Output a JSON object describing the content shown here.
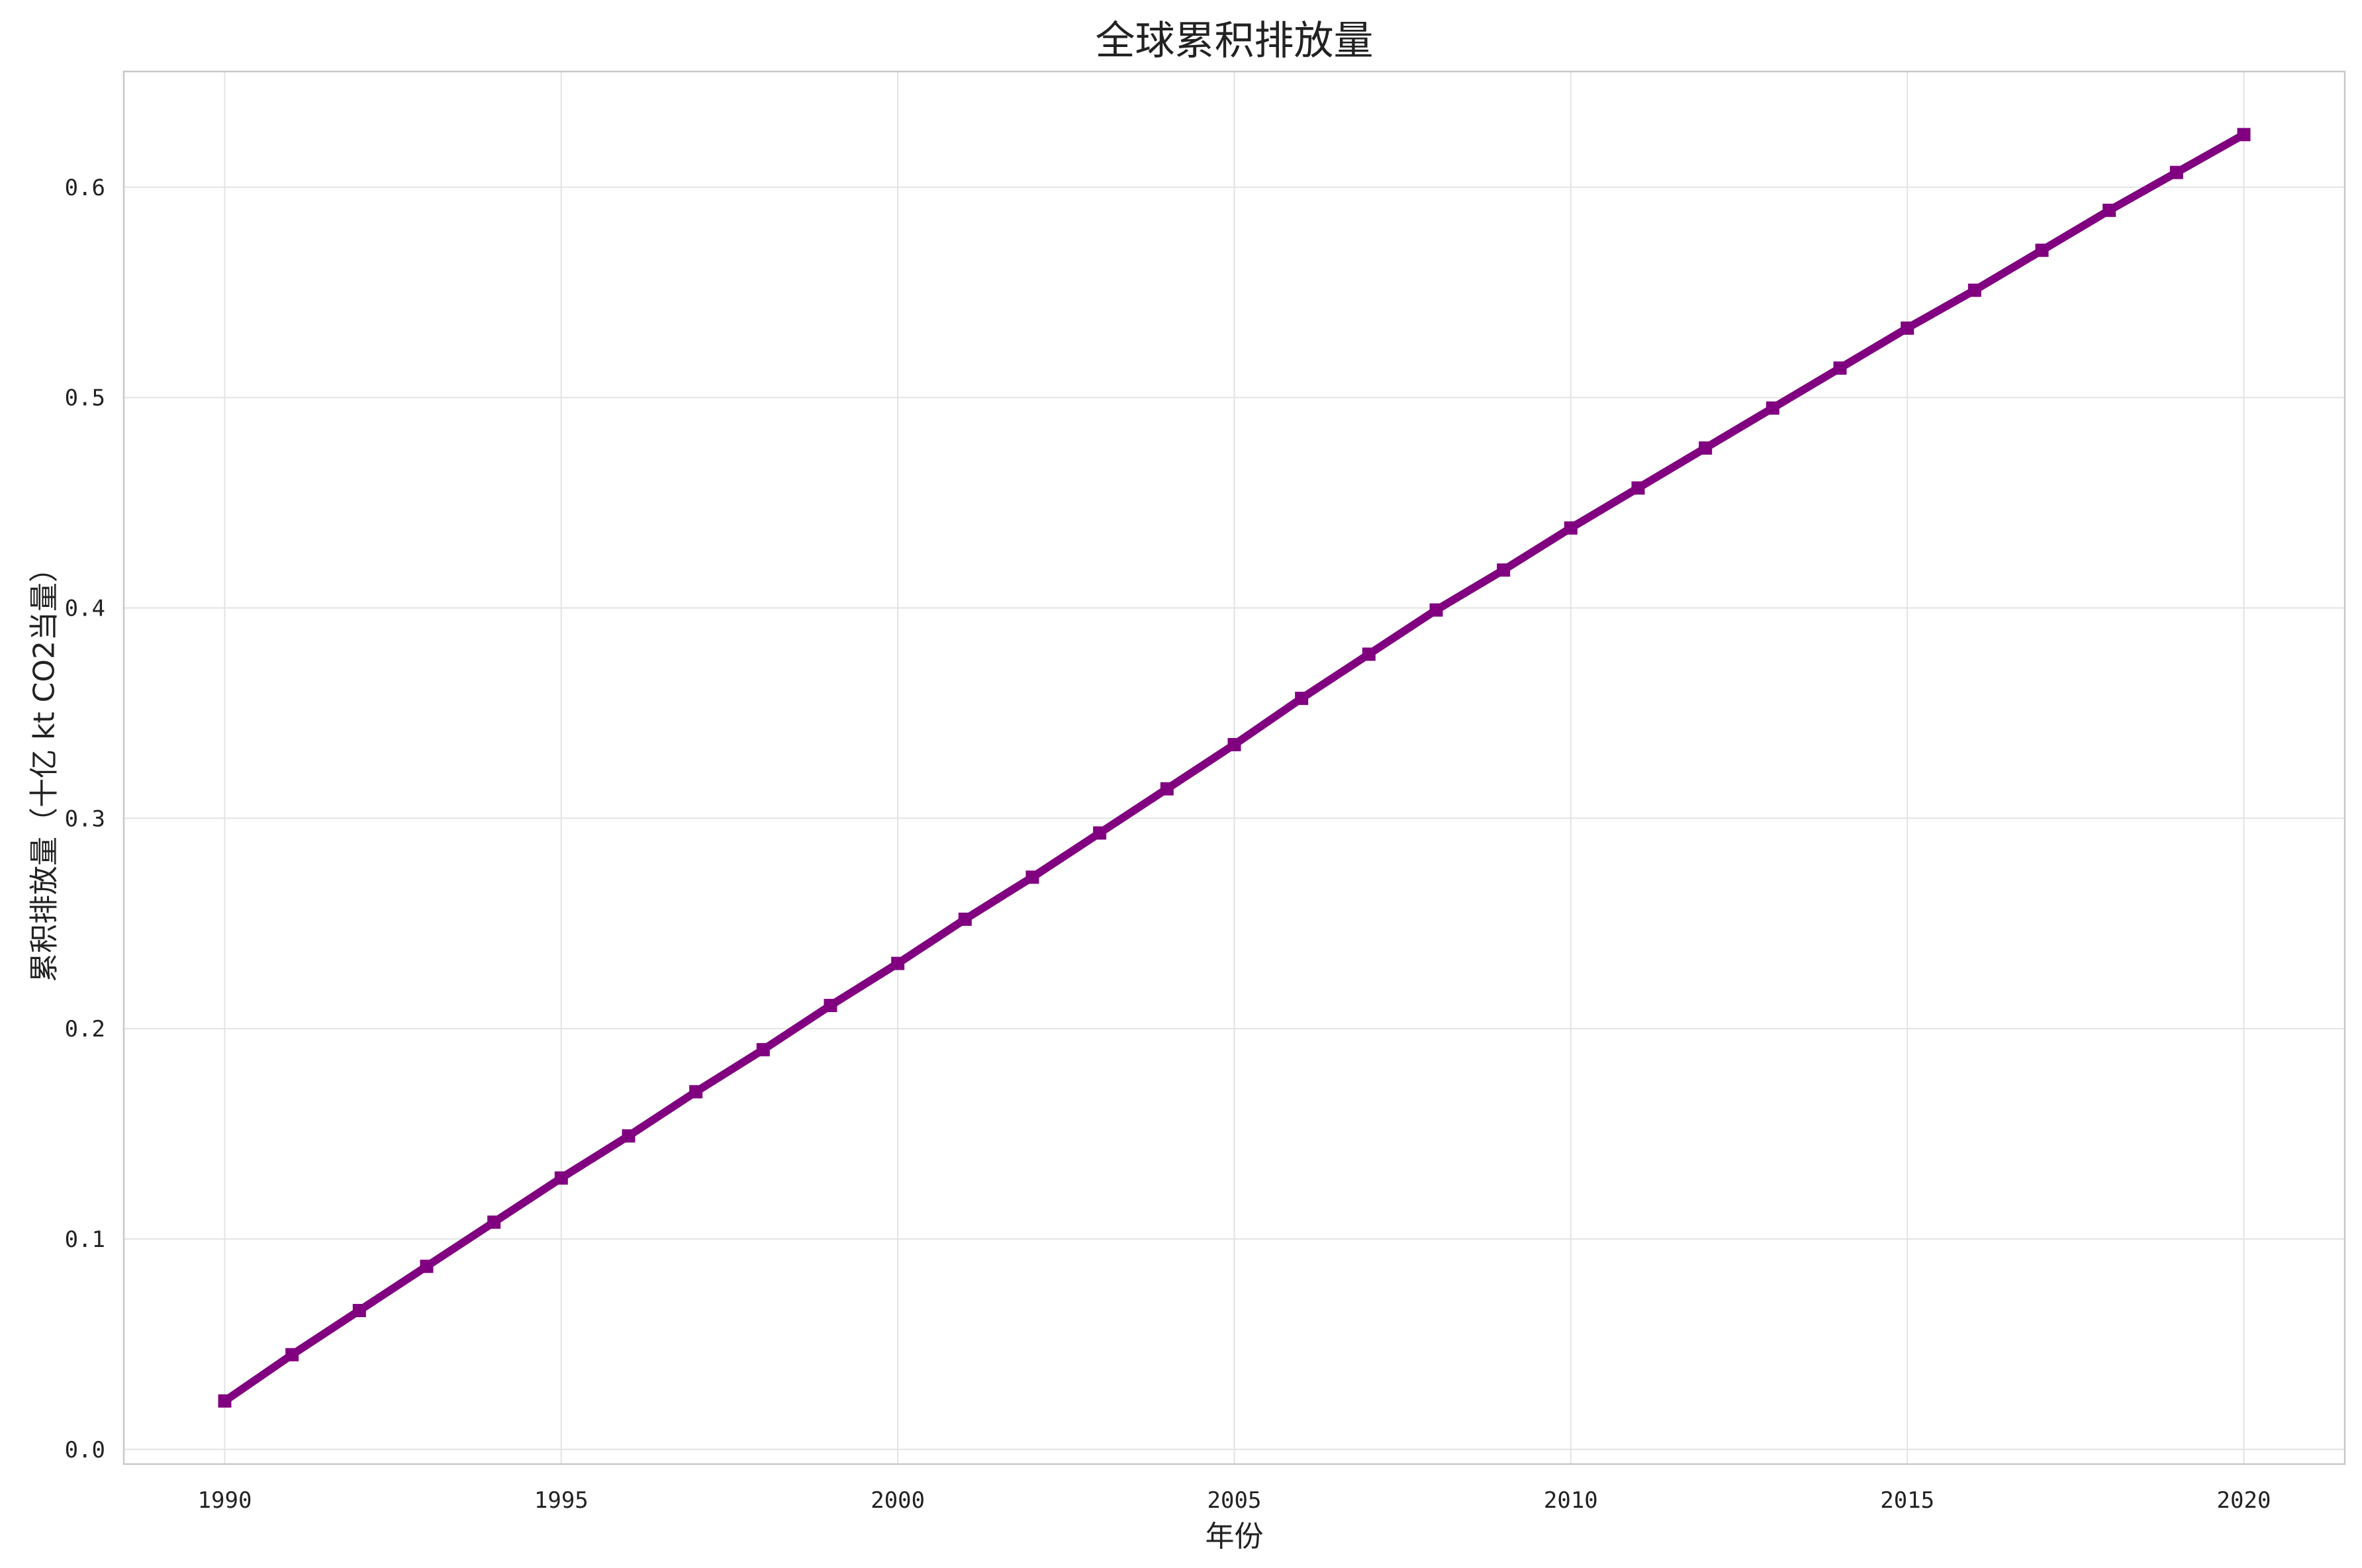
{
  "chart_data": {
    "type": "line",
    "title": "全球累积排放量",
    "xlabel": "年份",
    "ylabel": "累积排放量（十亿 kt CO2当量）",
    "xlim": [
      1988.5,
      2021.5
    ],
    "ylim": [
      -0.007,
      0.655
    ],
    "xticks": [
      1990,
      1995,
      2000,
      2005,
      2010,
      2015,
      2020
    ],
    "yticks": [
      0.0,
      0.1,
      0.2,
      0.3,
      0.4,
      0.5,
      0.6
    ],
    "ytick_labels": [
      "0.0",
      "0.1",
      "0.2",
      "0.3",
      "0.4",
      "0.5",
      "0.6"
    ],
    "grid": true,
    "line_color": "#800080",
    "marker": "square",
    "series": [
      {
        "x": [
          1990,
          1991,
          1992,
          1993,
          1994,
          1995,
          1996,
          1997,
          1998,
          1999,
          2000,
          2001,
          2002,
          2003,
          2004,
          2005,
          2006,
          2007,
          2008,
          2009,
          2010,
          2011,
          2012,
          2013,
          2014,
          2015,
          2016,
          2017,
          2018,
          2019,
          2020
        ],
        "values": [
          0.023,
          0.045,
          0.066,
          0.087,
          0.108,
          0.129,
          0.149,
          0.17,
          0.19,
          0.211,
          0.231,
          0.252,
          0.272,
          0.293,
          0.314,
          0.335,
          0.357,
          0.378,
          0.399,
          0.418,
          0.438,
          0.457,
          0.476,
          0.495,
          0.514,
          0.533,
          0.551,
          0.57,
          0.589,
          0.607,
          0.625
        ]
      }
    ]
  }
}
